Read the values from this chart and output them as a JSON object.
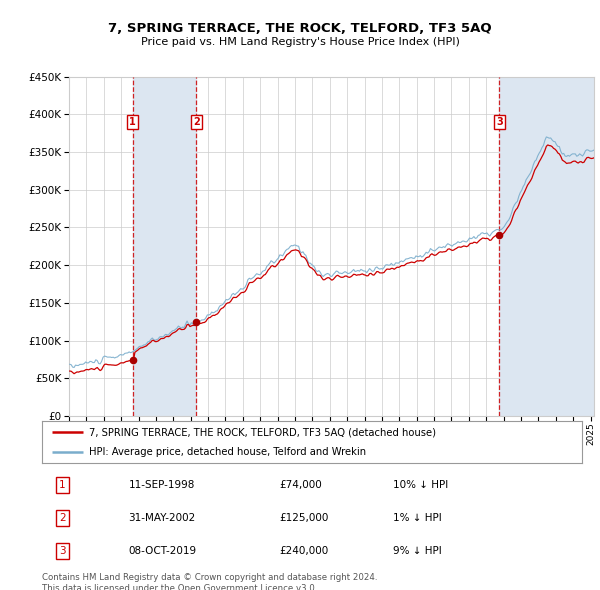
{
  "title": "7, SPRING TERRACE, THE ROCK, TELFORD, TF3 5AQ",
  "subtitle": "Price paid vs. HM Land Registry's House Price Index (HPI)",
  "legend_line1": "7, SPRING TERRACE, THE ROCK, TELFORD, TF3 5AQ (detached house)",
  "legend_line2": "HPI: Average price, detached house, Telford and Wrekin",
  "footnote": "Contains HM Land Registry data © Crown copyright and database right 2024.\nThis data is licensed under the Open Government Licence v3.0.",
  "sale_prices": [
    74000,
    125000,
    240000
  ],
  "sale_labels": [
    "1",
    "2",
    "3"
  ],
  "sale_notes": [
    "10% ↓ HPI",
    "1% ↓ HPI",
    "9% ↓ HPI"
  ],
  "sale_dates_str": [
    "11-SEP-1998",
    "31-MAY-2002",
    "08-OCT-2019"
  ],
  "prices_str": [
    "£74,000",
    "£125,000",
    "£240,000"
  ],
  "ylim": [
    0,
    450000
  ],
  "yticks": [
    0,
    50000,
    100000,
    150000,
    200000,
    250000,
    300000,
    350000,
    400000,
    450000
  ],
  "price_line_color": "#cc0000",
  "hpi_line_color": "#7aadcc",
  "sale_dot_color": "#aa0000",
  "shade_color": "#dce6f1",
  "vline_color": "#cc0000",
  "background_color": "#ffffff",
  "grid_color": "#cccccc",
  "box_color": "#cc0000",
  "xlim_start": 1995.0,
  "xlim_end": 2025.2
}
